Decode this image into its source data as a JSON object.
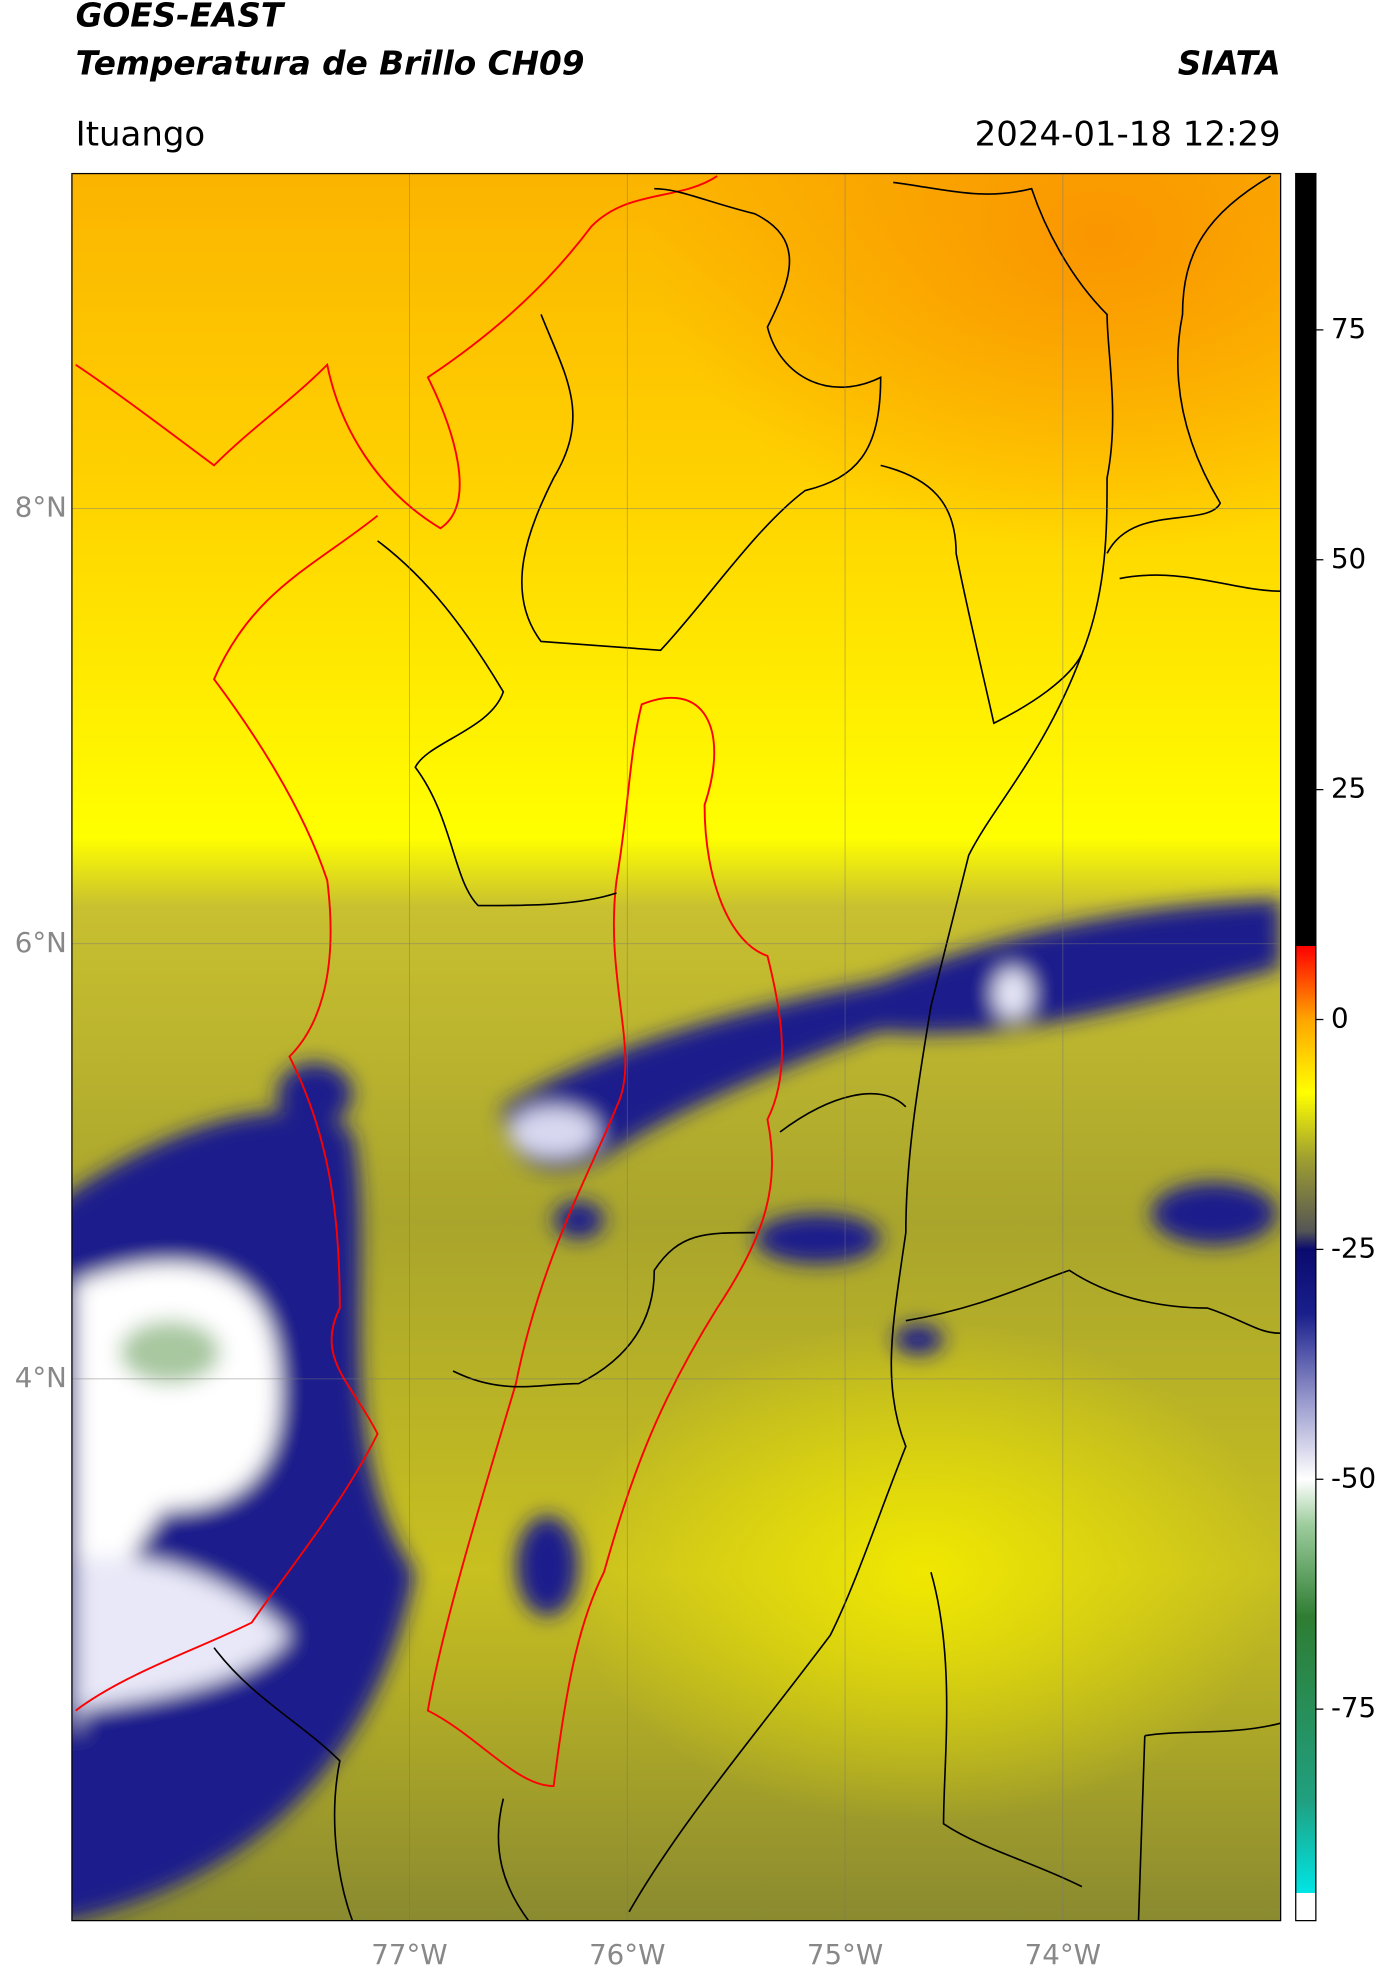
{
  "header": {
    "title": "GOES-EAST",
    "subtitle": "Temperatura de Brillo CH09",
    "source": "SIATA",
    "region": "Ituango",
    "timestamp": "2024-01-18 12:29"
  },
  "chart_data": {
    "type": "map",
    "xlim": [
      -78.55,
      -73.0
    ],
    "ylim": [
      1.51,
      9.54
    ],
    "xticks": [
      {
        "value": -77,
        "label": "77°W"
      },
      {
        "value": -76,
        "label": "76°W"
      },
      {
        "value": -75,
        "label": "75°W"
      },
      {
        "value": -74,
        "label": "74°W"
      }
    ],
    "yticks": [
      {
        "value": 8,
        "label": "8°N"
      },
      {
        "value": 6,
        "label": "6°N"
      },
      {
        "value": 4,
        "label": "4°N"
      }
    ],
    "grid": true,
    "colorbar": {
      "lim": [
        -98,
        92
      ],
      "ticks": [
        75,
        50,
        25,
        0,
        -25,
        -50,
        -75
      ],
      "colormap": [
        {
          "value": -98,
          "color": "#ffffff"
        },
        {
          "value": -95,
          "color": "#ffffff"
        },
        {
          "value": -95,
          "color": "#00e5e5"
        },
        {
          "value": -85,
          "color": "#20a080"
        },
        {
          "value": -65,
          "color": "#2e7d32"
        },
        {
          "value": -55,
          "color": "#9ccc9c"
        },
        {
          "value": -50,
          "color": "#ffffff"
        },
        {
          "value": -42,
          "color": "#9fa0d0"
        },
        {
          "value": -32,
          "color": "#1a1f8c"
        },
        {
          "value": -25,
          "color": "#0a0a6e"
        },
        {
          "value": -23,
          "color": "#555555"
        },
        {
          "value": -15,
          "color": "#a0a030"
        },
        {
          "value": -8,
          "color": "#ffff00"
        },
        {
          "value": 0,
          "color": "#ffa500"
        },
        {
          "value": 8,
          "color": "#ff0000"
        },
        {
          "value": 8,
          "color": "#000000"
        },
        {
          "value": 92,
          "color": "#000000"
        }
      ]
    }
  }
}
